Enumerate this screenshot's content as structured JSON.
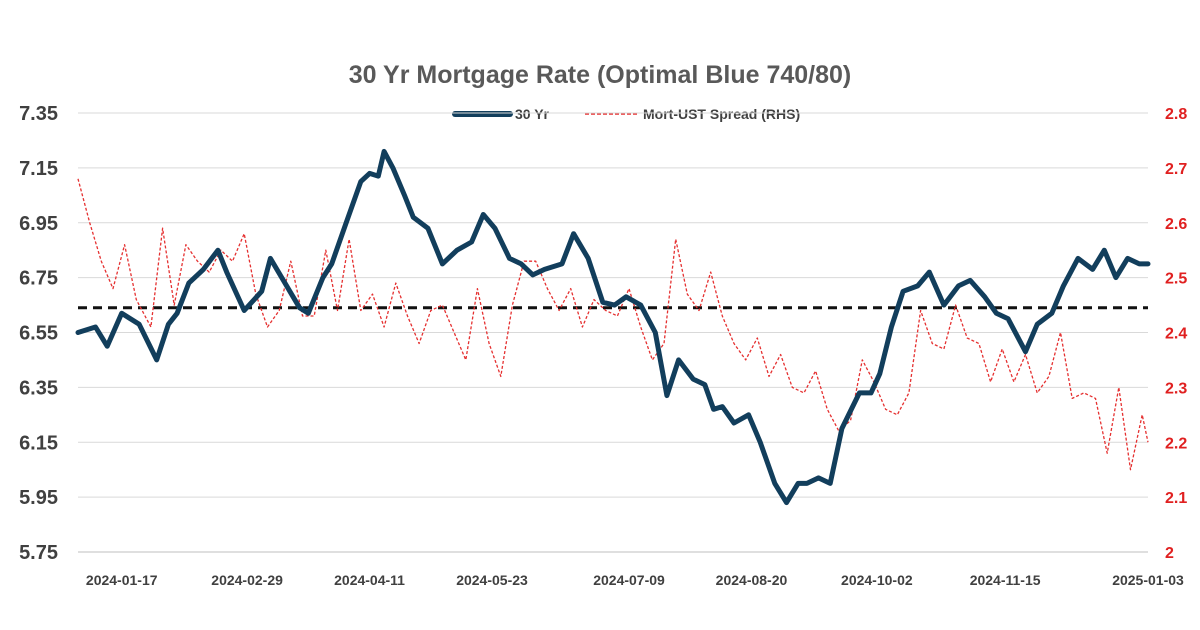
{
  "chart_data": {
    "type": "line",
    "title": "30 Yr Mortgage Rate (Optimal Blue 740/80)",
    "legend_placement": "top-center",
    "grid": true,
    "colors": {
      "rate_line": "#123e5c",
      "spread_line": "#e53030",
      "reference_line": "#111111",
      "grid": "#d9d9d9",
      "right_axis_text": "#e02020"
    },
    "x_tick_labels": [
      "2024-01-17",
      "2024-02-29",
      "2024-04-11",
      "2024-05-23",
      "2024-07-09",
      "2024-08-20",
      "2024-10-02",
      "2024-11-15",
      "2025-01-03"
    ],
    "y_left": {
      "ticks": [
        "5.75",
        "5.95",
        "6.15",
        "6.35",
        "6.55",
        "6.75",
        "6.95",
        "7.15",
        "7.35"
      ],
      "lim": [
        5.75,
        7.35
      ]
    },
    "y_right": {
      "ticks": [
        "2",
        "2.1",
        "2.2",
        "2.3",
        "2.4",
        "2.5",
        "2.6",
        "2.7",
        "2.8"
      ],
      "lim": [
        2.0,
        2.8
      ]
    },
    "reference_line_value": 6.64,
    "series": [
      {
        "name": "30 Yr",
        "axis": "left",
        "style": "solid-thick",
        "x": [
          "2024-01-02",
          "2024-01-08",
          "2024-01-12",
          "2024-01-17",
          "2024-01-23",
          "2024-01-29",
          "2024-02-02",
          "2024-02-05",
          "2024-02-09",
          "2024-02-14",
          "2024-02-19",
          "2024-02-22",
          "2024-02-28",
          "2024-03-05",
          "2024-03-08",
          "2024-03-13",
          "2024-03-18",
          "2024-03-21",
          "2024-03-26",
          "2024-03-29",
          "2024-04-03",
          "2024-04-08",
          "2024-04-11",
          "2024-04-14",
          "2024-04-16",
          "2024-04-19",
          "2024-04-23",
          "2024-04-26",
          "2024-05-01",
          "2024-05-06",
          "2024-05-11",
          "2024-05-16",
          "2024-05-20",
          "2024-05-24",
          "2024-05-29",
          "2024-06-02",
          "2024-06-06",
          "2024-06-10",
          "2024-06-16",
          "2024-06-20",
          "2024-06-25",
          "2024-06-30",
          "2024-07-04",
          "2024-07-08",
          "2024-07-13",
          "2024-07-18",
          "2024-07-22",
          "2024-07-26",
          "2024-07-31",
          "2024-08-04",
          "2024-08-07",
          "2024-08-10",
          "2024-08-14",
          "2024-08-19",
          "2024-08-23",
          "2024-08-28",
          "2024-09-01",
          "2024-09-05",
          "2024-09-08",
          "2024-09-12",
          "2024-09-16",
          "2024-09-20",
          "2024-09-26",
          "2024-09-30",
          "2024-10-03",
          "2024-10-07",
          "2024-10-11",
          "2024-10-16",
          "2024-10-20",
          "2024-10-25",
          "2024-10-30",
          "2024-11-03",
          "2024-11-08",
          "2024-11-12",
          "2024-11-16",
          "2024-11-22",
          "2024-11-26",
          "2024-12-01",
          "2024-12-05",
          "2024-12-10",
          "2024-12-15",
          "2024-12-19",
          "2024-12-23",
          "2024-12-27",
          "2024-12-31",
          "2025-01-03"
        ],
        "y": [
          6.55,
          6.57,
          6.5,
          6.62,
          6.58,
          6.45,
          6.58,
          6.62,
          6.73,
          6.78,
          6.85,
          6.77,
          6.63,
          6.7,
          6.82,
          6.73,
          6.64,
          6.62,
          6.75,
          6.8,
          6.95,
          7.1,
          7.13,
          7.12,
          7.21,
          7.15,
          7.05,
          6.97,
          6.93,
          6.8,
          6.85,
          6.88,
          6.98,
          6.93,
          6.82,
          6.8,
          6.76,
          6.78,
          6.8,
          6.91,
          6.82,
          6.66,
          6.65,
          6.68,
          6.65,
          6.55,
          6.32,
          6.45,
          6.38,
          6.36,
          6.27,
          6.28,
          6.22,
          6.25,
          6.15,
          6.0,
          5.93,
          6.0,
          6.0,
          6.02,
          6.0,
          6.2,
          6.33,
          6.33,
          6.4,
          6.57,
          6.7,
          6.72,
          6.77,
          6.65,
          6.72,
          6.74,
          6.68,
          6.62,
          6.6,
          6.48,
          6.58,
          6.62,
          6.72,
          6.82,
          6.78,
          6.85,
          6.75,
          6.82,
          6.8,
          6.8
        ]
      },
      {
        "name": "Mort-UST Spread (RHS)",
        "axis": "right",
        "style": "dashed",
        "x": [
          "2024-01-02",
          "2024-01-06",
          "2024-01-10",
          "2024-01-14",
          "2024-01-18",
          "2024-01-22",
          "2024-01-27",
          "2024-01-31",
          "2024-02-04",
          "2024-02-08",
          "2024-02-12",
          "2024-02-16",
          "2024-02-20",
          "2024-02-24",
          "2024-02-28",
          "2024-03-03",
          "2024-03-07",
          "2024-03-11",
          "2024-03-15",
          "2024-03-19",
          "2024-03-23",
          "2024-03-27",
          "2024-03-31",
          "2024-04-04",
          "2024-04-08",
          "2024-04-12",
          "2024-04-16",
          "2024-04-20",
          "2024-04-24",
          "2024-04-28",
          "2024-05-02",
          "2024-05-06",
          "2024-05-10",
          "2024-05-14",
          "2024-05-18",
          "2024-05-22",
          "2024-05-26",
          "2024-05-30",
          "2024-06-03",
          "2024-06-07",
          "2024-06-11",
          "2024-06-15",
          "2024-06-19",
          "2024-06-23",
          "2024-06-27",
          "2024-07-01",
          "2024-07-05",
          "2024-07-09",
          "2024-07-13",
          "2024-07-17",
          "2024-07-21",
          "2024-07-25",
          "2024-07-29",
          "2024-08-02",
          "2024-08-06",
          "2024-08-10",
          "2024-08-14",
          "2024-08-18",
          "2024-08-22",
          "2024-08-26",
          "2024-08-30",
          "2024-09-03",
          "2024-09-07",
          "2024-09-11",
          "2024-09-15",
          "2024-09-19",
          "2024-09-23",
          "2024-09-27",
          "2024-10-01",
          "2024-10-05",
          "2024-10-09",
          "2024-10-13",
          "2024-10-17",
          "2024-10-21",
          "2024-10-25",
          "2024-10-29",
          "2024-11-02",
          "2024-11-06",
          "2024-11-10",
          "2024-11-14",
          "2024-11-18",
          "2024-11-22",
          "2024-11-26",
          "2024-11-30",
          "2024-12-04",
          "2024-12-08",
          "2024-12-12",
          "2024-12-16",
          "2024-12-20",
          "2024-12-24",
          "2024-12-28",
          "2025-01-01",
          "2025-01-03"
        ],
        "y": [
          2.68,
          2.6,
          2.53,
          2.48,
          2.56,
          2.46,
          2.41,
          2.59,
          2.45,
          2.56,
          2.53,
          2.51,
          2.55,
          2.53,
          2.58,
          2.47,
          2.41,
          2.44,
          2.53,
          2.43,
          2.43,
          2.55,
          2.44,
          2.57,
          2.44,
          2.47,
          2.41,
          2.49,
          2.43,
          2.38,
          2.44,
          2.45,
          2.4,
          2.35,
          2.48,
          2.38,
          2.32,
          2.45,
          2.53,
          2.53,
          2.48,
          2.44,
          2.48,
          2.41,
          2.46,
          2.44,
          2.43,
          2.48,
          2.41,
          2.35,
          2.38,
          2.57,
          2.47,
          2.44,
          2.51,
          2.43,
          2.38,
          2.35,
          2.39,
          2.32,
          2.36,
          2.3,
          2.29,
          2.33,
          2.26,
          2.22,
          2.24,
          2.35,
          2.31,
          2.26,
          2.25,
          2.29,
          2.44,
          2.38,
          2.37,
          2.45,
          2.39,
          2.38,
          2.31,
          2.37,
          2.31,
          2.36,
          2.29,
          2.32,
          2.4,
          2.28,
          2.29,
          2.28,
          2.18,
          2.3,
          2.15,
          2.25,
          2.2
        ]
      }
    ]
  }
}
